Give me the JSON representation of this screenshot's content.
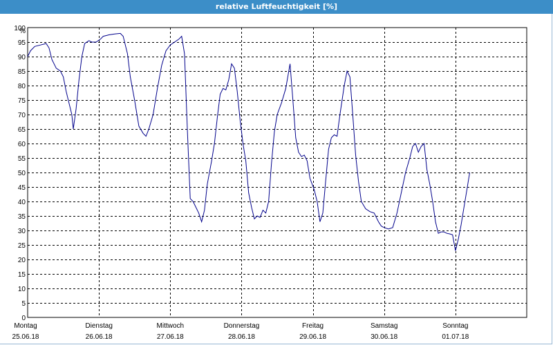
{
  "window": {
    "title": "relative Luftfeuchtigkeit [%]"
  },
  "colors": {
    "title_bar": "#3c8ec8",
    "line": "#00008b",
    "grid": "#000000"
  },
  "chart_data": {
    "type": "line",
    "title": "relative Luftfeuchtigkeit [%]",
    "ylabel": "%",
    "ylim": [
      0,
      100
    ],
    "ytick_step": 5,
    "grid": true,
    "x_ticks": [
      {
        "day": "Montag",
        "date": "25.06.18"
      },
      {
        "day": "Dienstag",
        "date": "26.06.18"
      },
      {
        "day": "Mittwoch",
        "date": "27.06.18"
      },
      {
        "day": "Donnerstag",
        "date": "28.06.18"
      },
      {
        "day": "Freitag",
        "date": "29.06.18"
      },
      {
        "day": "Samstag",
        "date": "30.06.18"
      },
      {
        "day": "Sonntag",
        "date": "01.07.18"
      }
    ],
    "x_unit": "days",
    "xlim": [
      0,
      7
    ],
    "series": [
      {
        "values": [
          [
            0.0,
            90
          ],
          [
            0.04,
            92
          ],
          [
            0.1,
            93.5
          ],
          [
            0.18,
            94
          ],
          [
            0.26,
            94.5
          ],
          [
            0.3,
            93
          ],
          [
            0.34,
            89
          ],
          [
            0.4,
            86
          ],
          [
            0.46,
            85
          ],
          [
            0.5,
            83
          ],
          [
            0.54,
            78
          ],
          [
            0.58,
            74
          ],
          [
            0.62,
            70
          ],
          [
            0.64,
            65
          ],
          [
            0.68,
            72
          ],
          [
            0.72,
            82
          ],
          [
            0.76,
            90
          ],
          [
            0.8,
            94.5
          ],
          [
            0.86,
            95.5
          ],
          [
            0.9,
            95
          ],
          [
            0.96,
            95
          ],
          [
            1.02,
            96
          ],
          [
            1.06,
            97
          ],
          [
            1.14,
            97.5
          ],
          [
            1.22,
            97.8
          ],
          [
            1.3,
            98
          ],
          [
            1.34,
            97
          ],
          [
            1.4,
            91
          ],
          [
            1.44,
            83
          ],
          [
            1.5,
            75
          ],
          [
            1.56,
            66
          ],
          [
            1.62,
            63.5
          ],
          [
            1.66,
            62.5
          ],
          [
            1.7,
            65
          ],
          [
            1.76,
            70
          ],
          [
            1.82,
            79
          ],
          [
            1.88,
            87
          ],
          [
            1.94,
            92
          ],
          [
            2.0,
            94
          ],
          [
            2.06,
            95
          ],
          [
            2.12,
            96
          ],
          [
            2.16,
            97
          ],
          [
            2.2,
            91
          ],
          [
            2.24,
            65
          ],
          [
            2.28,
            41
          ],
          [
            2.32,
            40
          ],
          [
            2.36,
            38
          ],
          [
            2.4,
            36
          ],
          [
            2.44,
            33
          ],
          [
            2.48,
            37
          ],
          [
            2.52,
            46
          ],
          [
            2.58,
            54
          ],
          [
            2.62,
            60
          ],
          [
            2.66,
            69
          ],
          [
            2.7,
            77
          ],
          [
            2.74,
            79
          ],
          [
            2.78,
            78.5
          ],
          [
            2.82,
            82
          ],
          [
            2.86,
            87.5
          ],
          [
            2.9,
            86
          ],
          [
            2.94,
            78
          ],
          [
            2.98,
            68
          ],
          [
            3.02,
            60
          ],
          [
            3.06,
            54
          ],
          [
            3.1,
            43
          ],
          [
            3.14,
            38
          ],
          [
            3.18,
            34
          ],
          [
            3.22,
            35
          ],
          [
            3.26,
            34.5
          ],
          [
            3.3,
            37
          ],
          [
            3.34,
            36
          ],
          [
            3.38,
            40
          ],
          [
            3.42,
            53
          ],
          [
            3.46,
            64
          ],
          [
            3.5,
            70
          ],
          [
            3.56,
            74
          ],
          [
            3.62,
            79
          ],
          [
            3.68,
            87.5
          ],
          [
            3.72,
            75
          ],
          [
            3.76,
            62
          ],
          [
            3.8,
            57
          ],
          [
            3.84,
            55.5
          ],
          [
            3.88,
            56
          ],
          [
            3.92,
            54
          ],
          [
            3.96,
            48
          ],
          [
            4.02,
            44
          ],
          [
            4.06,
            40
          ],
          [
            4.1,
            33
          ],
          [
            4.14,
            36
          ],
          [
            4.18,
            47
          ],
          [
            4.22,
            58
          ],
          [
            4.26,
            62
          ],
          [
            4.3,
            63
          ],
          [
            4.34,
            62.5
          ],
          [
            4.38,
            70
          ],
          [
            4.44,
            80
          ],
          [
            4.48,
            85
          ],
          [
            4.52,
            83
          ],
          [
            4.56,
            70
          ],
          [
            4.6,
            56
          ],
          [
            4.64,
            47
          ],
          [
            4.68,
            40
          ],
          [
            4.74,
            37.5
          ],
          [
            4.8,
            36.5
          ],
          [
            4.86,
            36
          ],
          [
            4.92,
            33
          ],
          [
            4.96,
            31.5
          ],
          [
            5.0,
            31
          ],
          [
            5.06,
            30.5
          ],
          [
            5.12,
            31
          ],
          [
            5.18,
            36
          ],
          [
            5.24,
            43
          ],
          [
            5.3,
            50
          ],
          [
            5.36,
            55
          ],
          [
            5.4,
            59
          ],
          [
            5.44,
            60
          ],
          [
            5.48,
            57
          ],
          [
            5.52,
            59
          ],
          [
            5.56,
            60
          ],
          [
            5.6,
            51
          ],
          [
            5.64,
            46
          ],
          [
            5.68,
            40
          ],
          [
            5.72,
            33
          ],
          [
            5.76,
            29
          ],
          [
            5.8,
            29.5
          ],
          [
            5.84,
            29.5
          ],
          [
            5.88,
            29
          ],
          [
            5.92,
            28.8
          ],
          [
            5.96,
            28.5
          ],
          [
            6.0,
            23
          ],
          [
            6.04,
            27
          ],
          [
            6.08,
            32
          ],
          [
            6.12,
            38
          ],
          [
            6.16,
            44
          ],
          [
            6.2,
            50
          ]
        ]
      }
    ]
  }
}
